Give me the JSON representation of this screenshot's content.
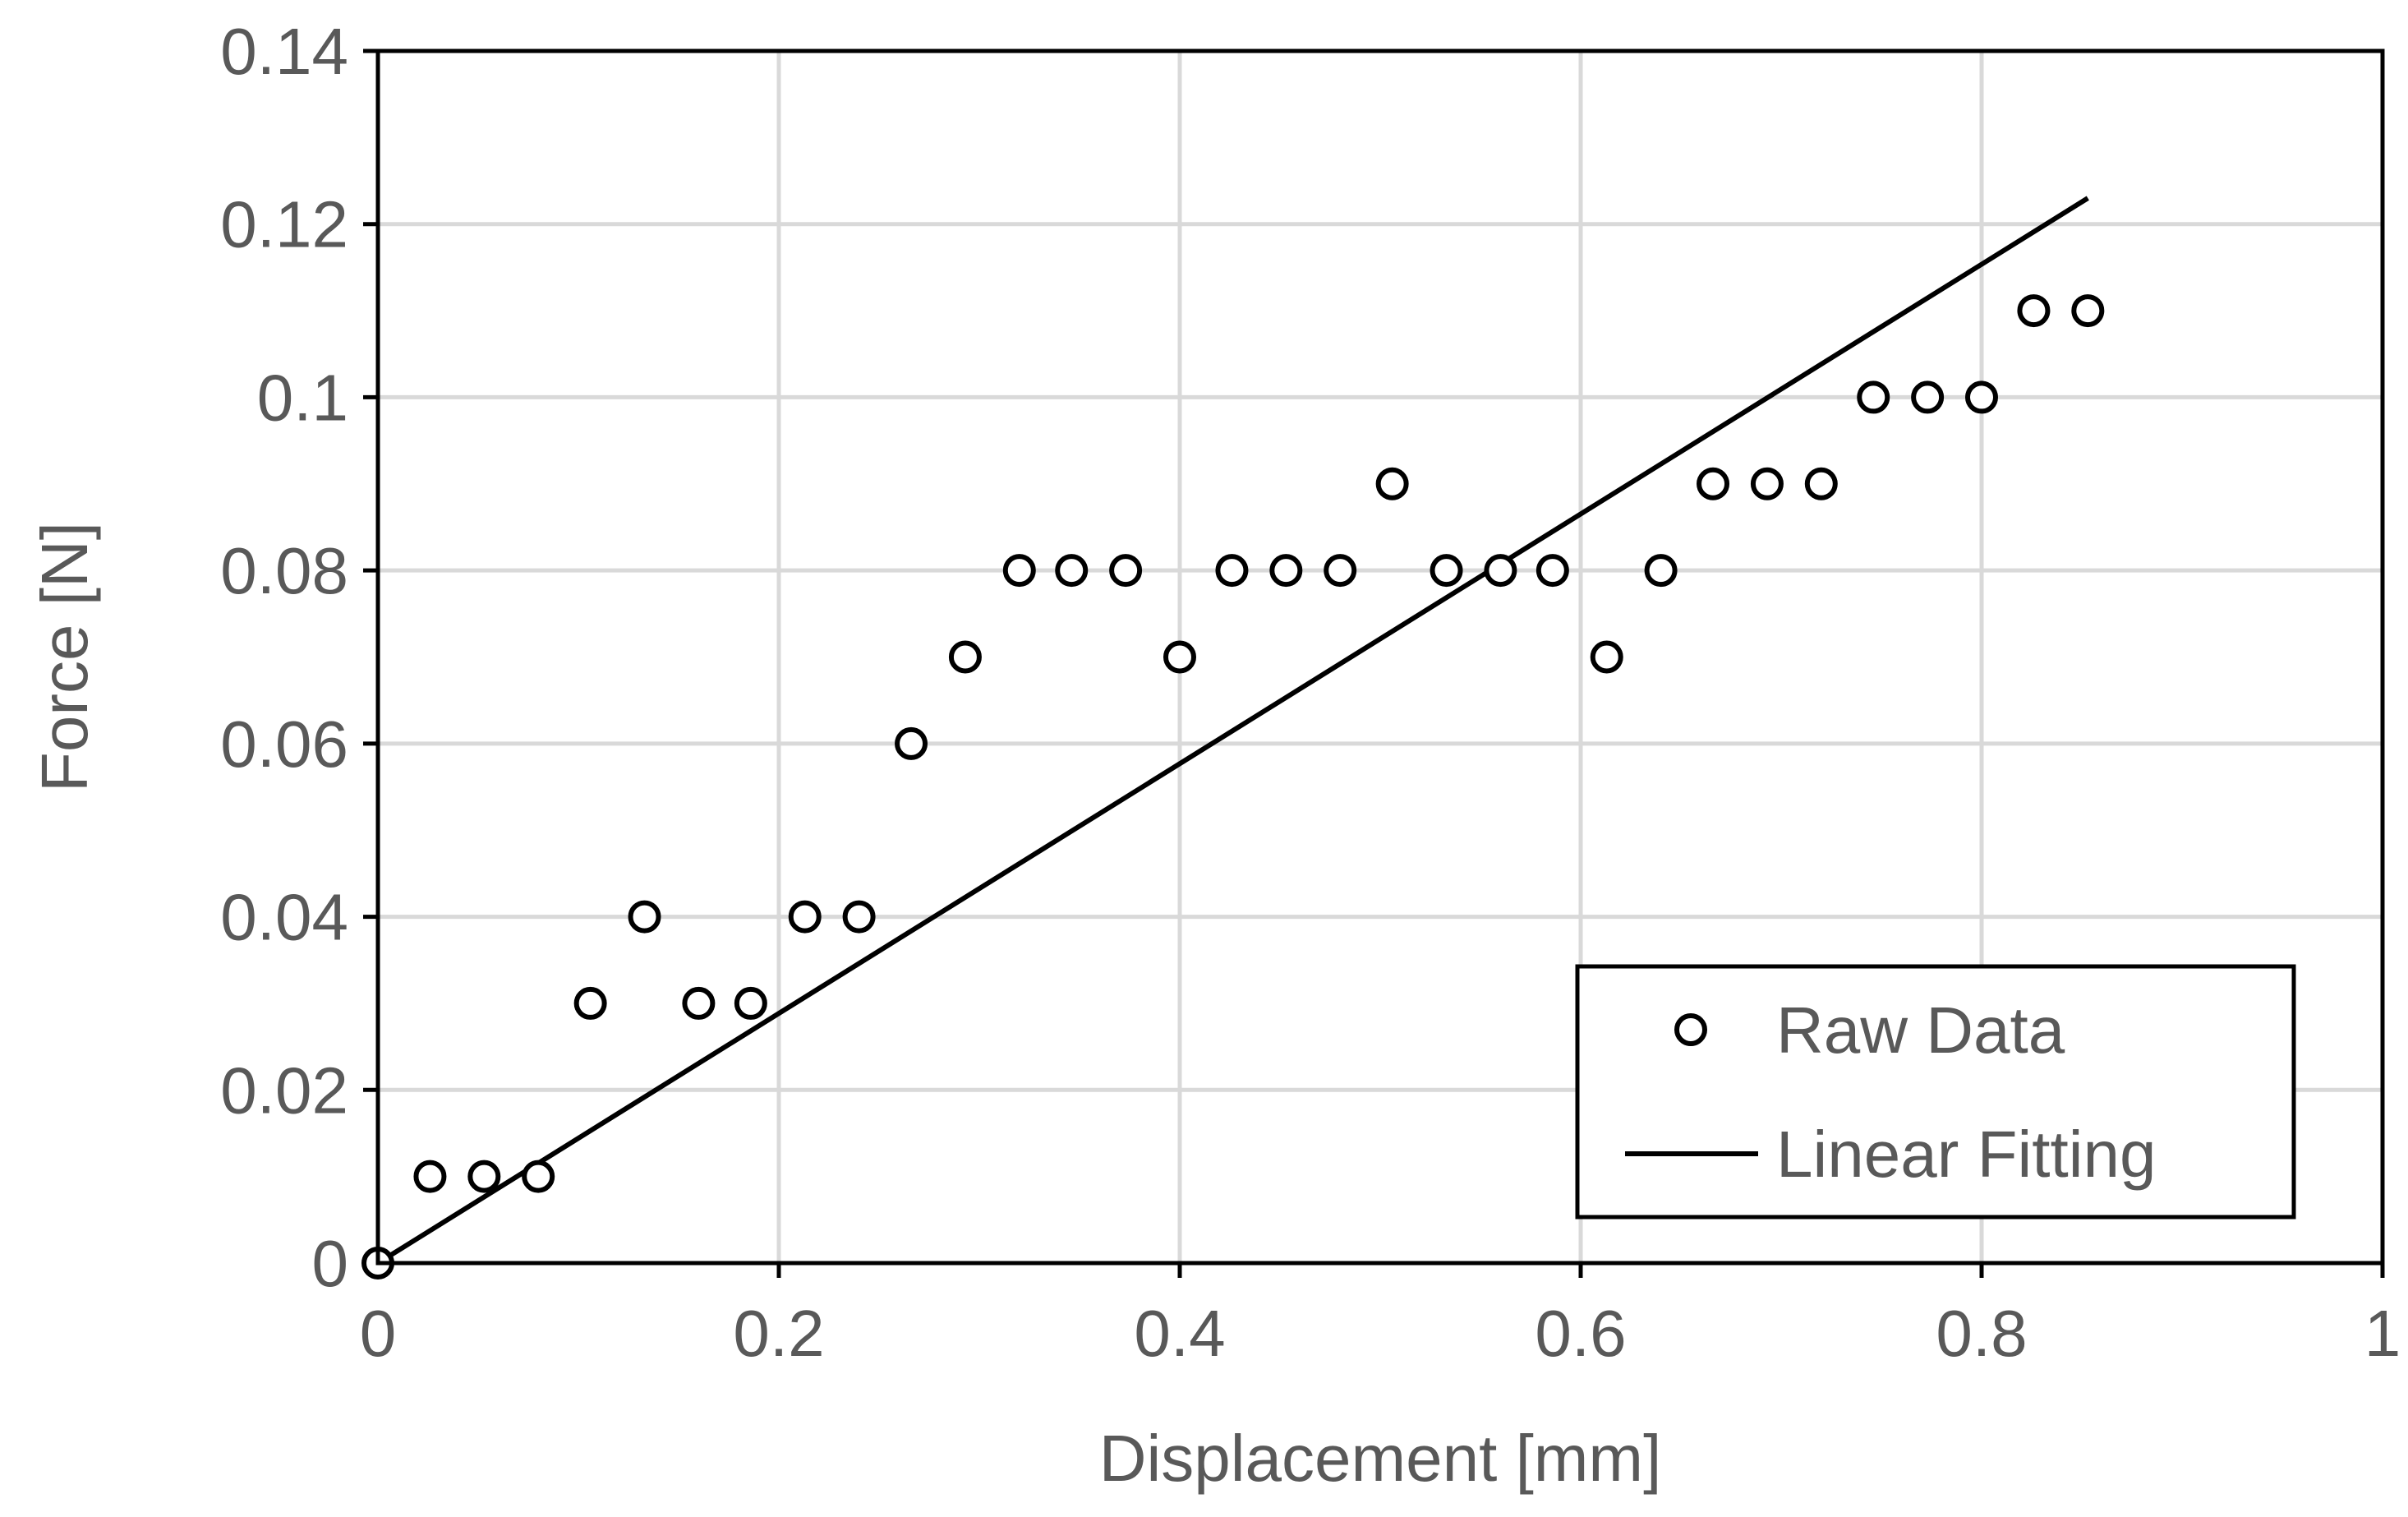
{
  "chart_data": {
    "type": "scatter",
    "title": "",
    "xlabel": "Displacement [mm]",
    "ylabel": "Force [N]",
    "xlim": [
      0,
      1
    ],
    "ylim": [
      0,
      0.14
    ],
    "x_ticks": [
      "0",
      "0.2",
      "0.4",
      "0.6",
      "0.8",
      "1"
    ],
    "y_ticks": [
      "0",
      "0.02",
      "0.04",
      "0.06",
      "0.08",
      "0.1",
      "0.12",
      "0.14"
    ],
    "x_tick_values": [
      0,
      0.2,
      0.4,
      0.6,
      0.8,
      1
    ],
    "y_tick_values": [
      0,
      0.02,
      0.04,
      0.06,
      0.08,
      0.1,
      0.12,
      0.14
    ],
    "grid": true,
    "legend_position": "bottom-right",
    "series": [
      {
        "name": "Raw Data",
        "kind": "scatter",
        "marker": "open-circle",
        "color": "#000000",
        "x": [
          0,
          0.026,
          0.053,
          0.08,
          0.106,
          0.133,
          0.16,
          0.186,
          0.213,
          0.24,
          0.266,
          0.293,
          0.32,
          0.346,
          0.373,
          0.4,
          0.426,
          0.453,
          0.48,
          0.506,
          0.533,
          0.56,
          0.586,
          0.613,
          0.64,
          0.666,
          0.693,
          0.72,
          0.746,
          0.773,
          0.8,
          0.826,
          0.853
        ],
        "y": [
          0,
          0.01,
          0.01,
          0.01,
          0.03,
          0.04,
          0.03,
          0.03,
          0.04,
          0.04,
          0.06,
          0.07,
          0.08,
          0.08,
          0.08,
          0.07,
          0.08,
          0.08,
          0.08,
          0.09,
          0.08,
          0.08,
          0.08,
          0.07,
          0.08,
          0.09,
          0.09,
          0.09,
          0.1,
          0.1,
          0.1,
          0.11,
          0.11
        ]
      },
      {
        "name": "Linear Fitting",
        "kind": "line",
        "color": "#000000",
        "x": [
          0,
          0.853
        ],
        "y": [
          0,
          0.123
        ]
      }
    ]
  }
}
